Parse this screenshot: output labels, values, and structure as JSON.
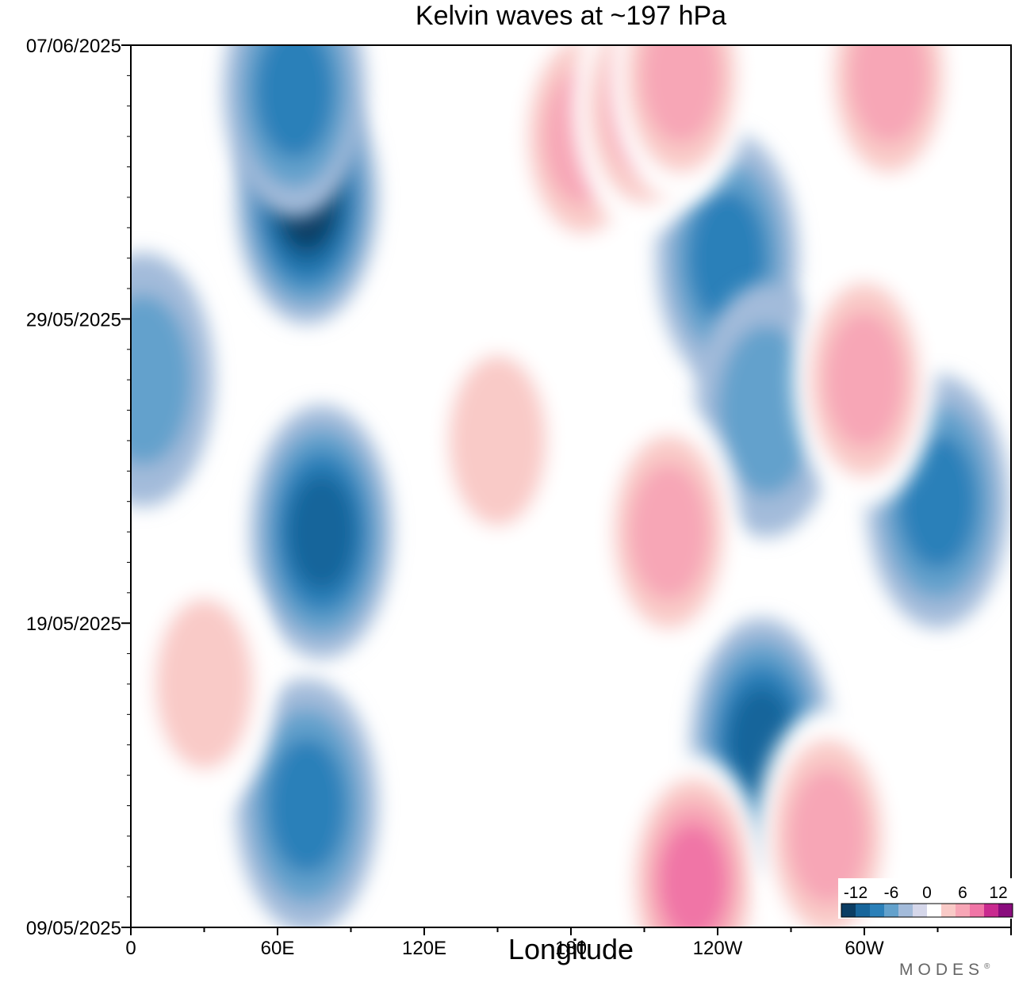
{
  "chart_data": {
    "type": "heatmap",
    "title": "Kelvin waves at ~197 hPa",
    "xlabel": "Longitude",
    "ylabel": "",
    "x_ticks": [
      "0",
      "60E",
      "120E",
      "180",
      "120W",
      "60W"
    ],
    "x_tick_values": [
      0,
      60,
      120,
      180,
      240,
      300
    ],
    "xlim": [
      0,
      360
    ],
    "y_ticks": [
      "07/06/2025",
      "29/05/2025",
      "19/05/2025",
      "09/05/2025"
    ],
    "y_tick_values": [
      29,
      20,
      10,
      0
    ],
    "ylim": [
      0,
      29
    ],
    "colorbar": {
      "tick_labels": [
        "-12",
        "-6",
        "0",
        "6",
        "12"
      ],
      "tick_values": [
        -12,
        -6,
        0,
        6,
        12
      ],
      "levels": [
        -15,
        -12,
        -9,
        -6,
        -3,
        -1.5,
        1.5,
        3,
        6,
        9,
        12,
        15
      ],
      "colors": [
        "#0b3d63",
        "#17659b",
        "#2b80b9",
        "#63a1cc",
        "#a3bbda",
        "#d5d7ea",
        "#ffffff",
        "#f9cac7",
        "#f7a6b6",
        "#f075a6",
        "#c92a8f",
        "#8a0c7d"
      ]
    },
    "features": [
      {
        "lon": 72,
        "day": 24,
        "value": -13
      },
      {
        "lon": 78,
        "day": 13,
        "value": -10
      },
      {
        "lon": 67,
        "day": 27.5,
        "value": -6
      },
      {
        "lon": 72,
        "day": 4,
        "value": -6
      },
      {
        "lon": 258,
        "day": 6,
        "value": -10
      },
      {
        "lon": 244,
        "day": 22,
        "value": -6
      },
      {
        "lon": 260,
        "day": 17,
        "value": -5
      },
      {
        "lon": 330,
        "day": 14,
        "value": -6
      },
      {
        "lon": 5,
        "day": 18,
        "value": -4
      },
      {
        "lon": 185,
        "day": 26,
        "value": 6
      },
      {
        "lon": 210,
        "day": 27,
        "value": 7
      },
      {
        "lon": 225,
        "day": 28,
        "value": 8
      },
      {
        "lon": 300,
        "day": 18,
        "value": 7
      },
      {
        "lon": 220,
        "day": 13,
        "value": 6
      },
      {
        "lon": 230,
        "day": 1.5,
        "value": 11
      },
      {
        "lon": 285,
        "day": 3,
        "value": 6
      },
      {
        "lon": 30,
        "day": 8,
        "value": 4
      },
      {
        "lon": 150,
        "day": 16,
        "value": 4
      },
      {
        "lon": 310,
        "day": 28,
        "value": 6
      }
    ]
  },
  "branding": {
    "text": "MODES",
    "mark": "®"
  }
}
